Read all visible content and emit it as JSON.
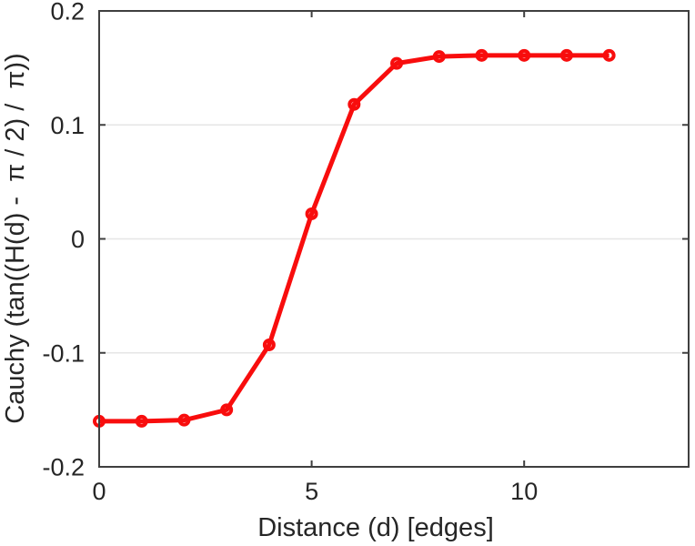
{
  "figure": {
    "background": "#ffffff",
    "text_color": "#262626",
    "axis_color": "#3f3f3f",
    "grid_color": "#e6e6e6"
  },
  "chart_data": {
    "type": "line",
    "title": "",
    "xlabel": "Distance (d) [edges]",
    "ylabel": "Cauchy (tan((H(d) -  π / 2) /  π))",
    "x": [
      0,
      1,
      2,
      3,
      4,
      5,
      6,
      7,
      8,
      9,
      10,
      11,
      12
    ],
    "series": [
      {
        "name": "Cauchy",
        "values": [
          -0.16,
          -0.16,
          -0.159,
          -0.15,
          -0.093,
          0.022,
          0.118,
          0.154,
          0.16,
          0.161,
          0.161,
          0.161,
          0.161
        ]
      }
    ],
    "xlim": [
      0,
      13.87
    ],
    "ylim": [
      -0.2,
      0.2
    ],
    "xticks": [
      0,
      5,
      10
    ],
    "xtick_labels": [
      "0",
      "5",
      "10"
    ],
    "yticks": [
      -0.2,
      -0.1,
      0,
      0.1,
      0.2
    ],
    "ytick_labels": [
      "-0.2",
      "-0.1",
      "0",
      "0.1",
      "0.2"
    ],
    "grid": "y-only",
    "legend": "none",
    "line_color": "#f80d0d",
    "line_width": 5,
    "marker": "open-circle",
    "marker_radius": 5,
    "marker_stroke_width": 4
  }
}
